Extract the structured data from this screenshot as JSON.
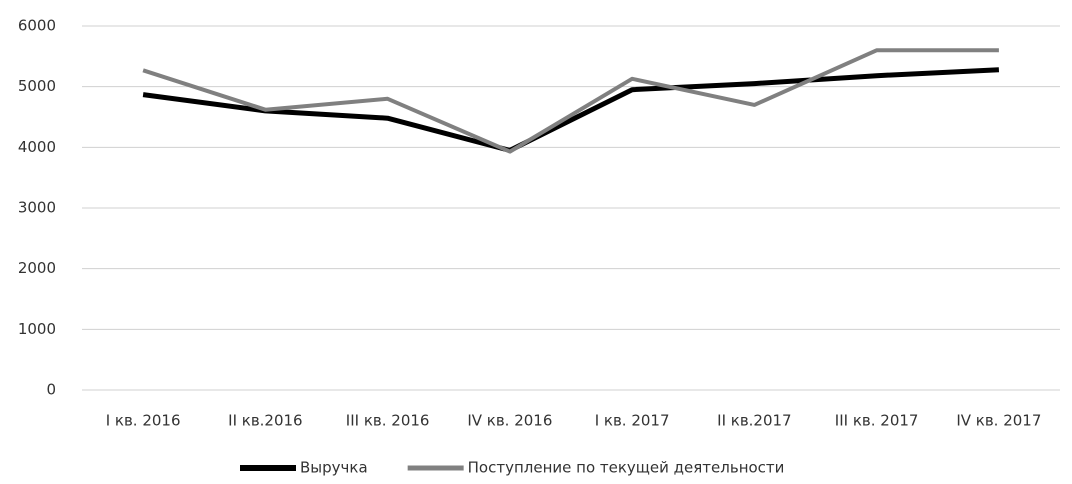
{
  "chart_data": {
    "type": "line",
    "categories": [
      "I кв. 2016",
      "II кв.2016",
      "III кв. 2016",
      "IV кв. 2016",
      "I кв. 2017",
      "II кв.2017",
      "III кв. 2017",
      "IV кв. 2017"
    ],
    "series": [
      {
        "name": "Выручка",
        "color": "#000000",
        "values": [
          4870,
          4600,
          4480,
          3950,
          4950,
          5050,
          5180,
          5280
        ]
      },
      {
        "name": "Поступление по текущей деятельности",
        "color": "#808080",
        "values": [
          5270,
          4620,
          4800,
          3930,
          5130,
          4700,
          5600,
          5600
        ]
      }
    ],
    "ylim": [
      0,
      6000
    ],
    "yticks": [
      0,
      1000,
      2000,
      3000,
      4000,
      5000,
      6000
    ],
    "grid": true,
    "legend": "bottom"
  }
}
